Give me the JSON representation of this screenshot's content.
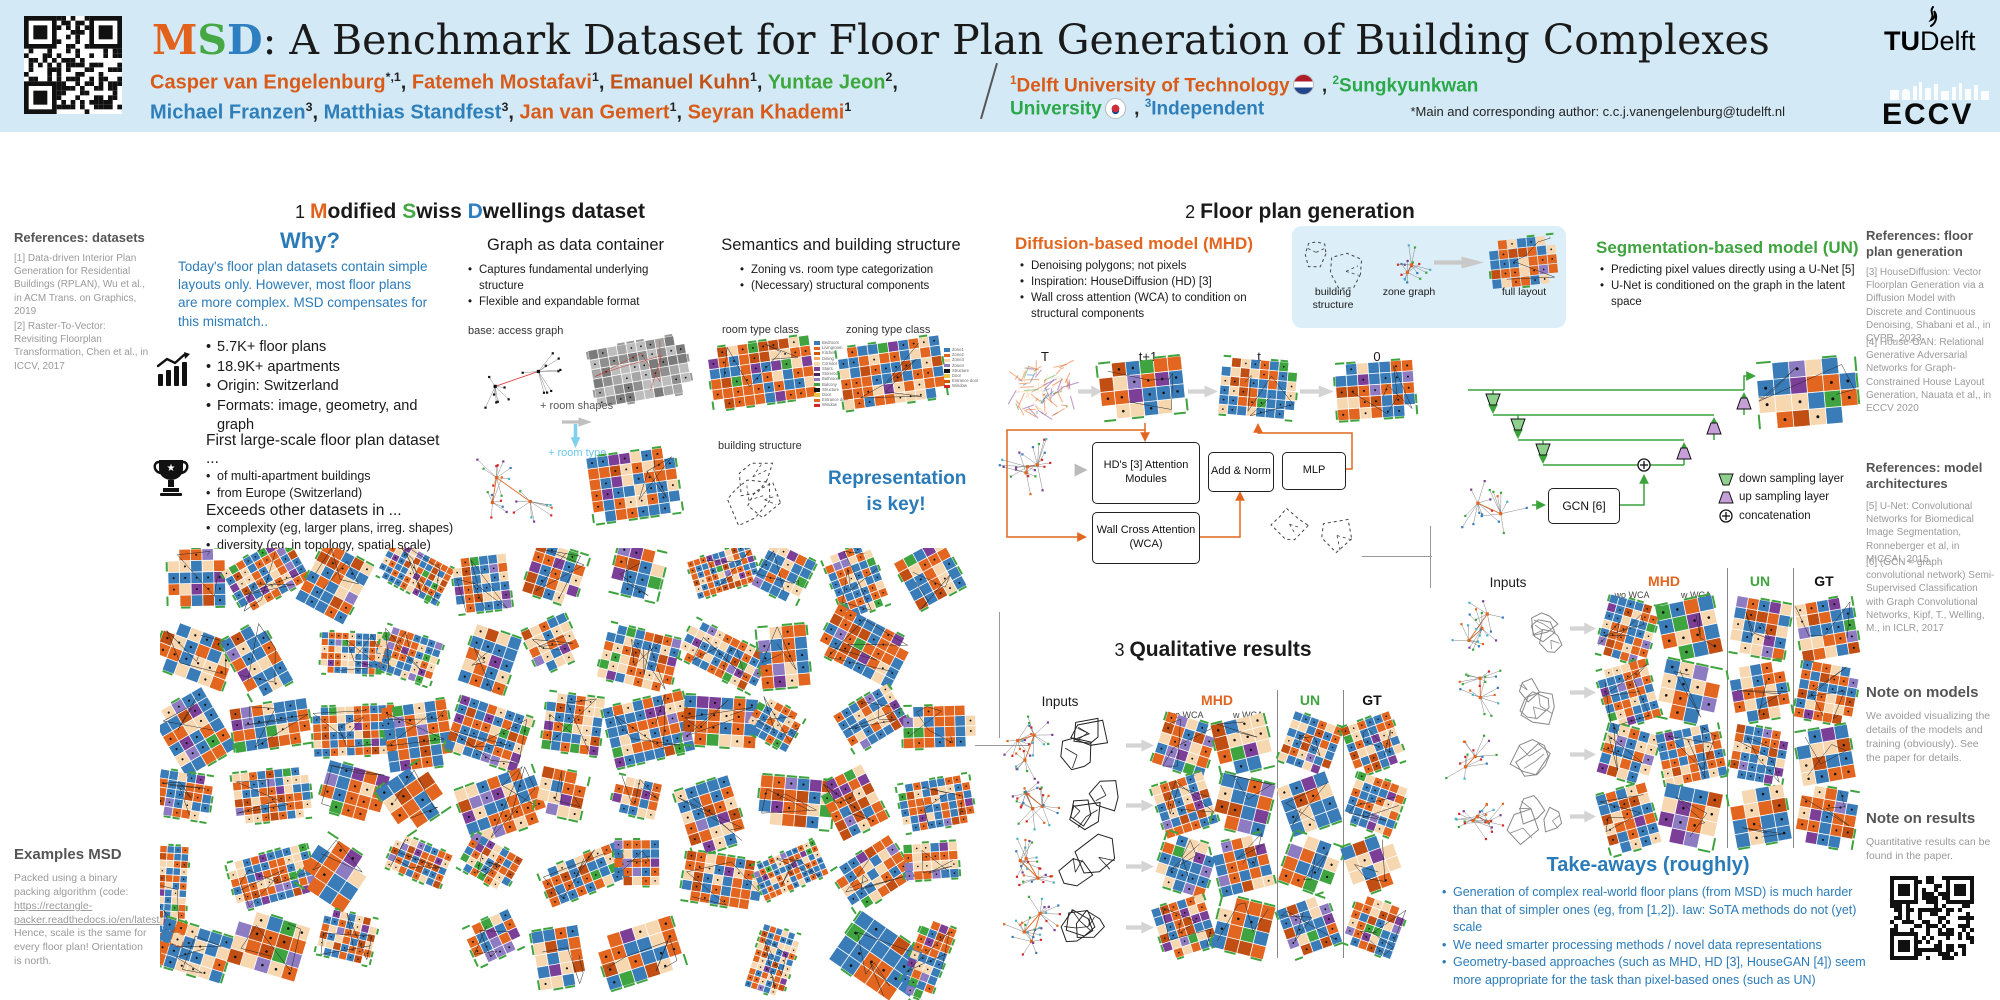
{
  "header": {
    "title": {
      "m": "M",
      "s": "S",
      "d": "D",
      "rest": ": A Benchmark Dataset for Floor Plan Generation of Building Complexes"
    },
    "authors_line1": [
      {
        "name": "Casper van Engelenburg",
        "sup": "*,1",
        "color": "#d95b1a",
        "bold": true,
        "sep": ", "
      },
      {
        "name": "Fatemeh Mostafavi",
        "sup": "1",
        "color": "#d95b1a",
        "bold": false,
        "sep": ", "
      },
      {
        "name": "Emanuel Kuhn",
        "sup": "1",
        "color": "#c45317",
        "bold": false,
        "sep": ", "
      },
      {
        "name": "Yuntae Jeon",
        "sup": "2",
        "color": "#3da win93d",
        "bold": false,
        "sep": ","
      }
    ],
    "authors_line2": [
      {
        "name": "Michael Franzen",
        "sup": "3",
        "color": "#2e7fba",
        "bold": false,
        "sep": ", "
      },
      {
        "name": "Matthias Standfest",
        "sup": "3",
        "color": "#2e7fba",
        "bold": false,
        "sep": ", "
      },
      {
        "name": "Jan van Gemert",
        "sup": "1",
        "color": "#d95b1a",
        "bold": false,
        "sep": ", "
      },
      {
        "name": "Seyran Khademi",
        "sup": "1",
        "color": "#d95b1a",
        "bold": false,
        "sep": ""
      }
    ],
    "affiliations": [
      {
        "sup": "1",
        "name": "Delft University of Technology",
        "color": "#d95b1a",
        "flag": "nl",
        "sep": " , "
      },
      {
        "sup": "2",
        "name": "Sungkyunkwan University",
        "color": "#2ba84a",
        "flag": "kr",
        "sep": " , "
      },
      {
        "sup": "3",
        "name": "Independent",
        "color": "#2e7fba",
        "flag": "",
        "sep": ""
      }
    ],
    "footnote": "*Main and corresponding author: c.c.j.vanengelenburg@tudelft.nl",
    "tudelft_tu": "TU",
    "tudelft_delft": "Delft",
    "eccv": "ECCV"
  },
  "sidebar_left": {
    "refs_title": "References: datasets",
    "refs": [
      "[1] Data-driven Interior Plan Generation for Residential Buildings (RPLAN), Wu et al., in ACM Trans. on Graphics, 2019",
      "[2] Raster-To-Vector: Revisiting Floorplan Transformation, Chen et al., in ICCV, 2017"
    ],
    "examples_title": "Examples MSD",
    "examples_text_1": "Packed using a binary packing algorithm (code: ",
    "examples_link": "https://rectangle-packer.readthedocs.io/en/latest/",
    "examples_text_2": "). Hence, scale is the same for every floor plan! Orientation is north."
  },
  "section1": {
    "heading": {
      "num": "1",
      "m": "M",
      "m_rest": "odified ",
      "s": "S",
      "s_rest": "wiss ",
      "d": "D",
      "d_rest": "wellings dataset"
    },
    "why": {
      "title": "Why?",
      "text": "Today's floor plan datasets contain simple layouts only. However, most floor plans are more complex. MSD compensates for this mismatch.."
    },
    "stats": [
      "5.7K+ floor plans",
      "18.9K+ apartments",
      "Origin: Switzerland",
      "Formats: image, geometry, and graph"
    ],
    "first": {
      "line1": "First large-scale floor plan dataset ...",
      "bullets1": [
        "of multi-apartment buildings",
        "from Europe (Switzerland)"
      ],
      "line2": "Exceeds other datasets in ...",
      "bullets2": [
        "complexity (eg, larger plans, irreg. shapes)",
        "diversity (eg, in topology, spatial scale)"
      ]
    },
    "graph_col": {
      "title": "Graph as data container",
      "bullets": [
        "Captures fundamental underlying structure",
        "Flexible and expandable format"
      ],
      "label_base": "base: access graph",
      "label_shapes": "+ room shapes",
      "label_type": "+ room type"
    },
    "semantics_col": {
      "title": "Semantics and building structure",
      "bullets": [
        "Zoning vs. room type categorization",
        "(Necessary) structural components"
      ],
      "label_room": "room type class",
      "label_zoning": "zoning type class",
      "label_structure": "building structure",
      "key_text_1": "Representation",
      "key_text_2": "is key!"
    },
    "legend_room": [
      "Bedroom",
      "Livingroom",
      "Kitchen",
      "Dining",
      "Corridor",
      "Stairs",
      "Storeroom",
      "Bathroom",
      "Balcony",
      "Structure",
      "Door",
      "Entrance door",
      "Window"
    ],
    "legend_room_colors": [
      "#3a7cb8",
      "#e2661f",
      "#d35400",
      "#f0a868",
      "#f6d7b0",
      "#7b3f98",
      "#4a235a",
      "#8e7cc3",
      "#3fa43f",
      "#111111",
      "#e8c547",
      "#e2661f",
      "#d62728"
    ],
    "legend_zone": [
      "Zone1",
      "Zone2",
      "Zone3",
      "Zone4",
      "Structure",
      "Door",
      "Entrance door",
      "Window"
    ],
    "legend_zone_colors": [
      "#3a7cb8",
      "#e2661f",
      "#f6d7b0",
      "#8e7cc3",
      "#111111",
      "#e8c547",
      "#d35400",
      "#d62728"
    ]
  },
  "section2": {
    "heading": {
      "num": "2",
      "text": "Floor plan generation"
    },
    "mhd": {
      "title": "Diffusion-based model (MHD)",
      "bullets": [
        "Denoising polygons; not pixels",
        "Inspiration: HouseDiffusion (HD) [3]",
        "Wall cross attention (WCA) to condition on structural components"
      ]
    },
    "pipeline_labels": {
      "building": "building structure",
      "zone": "zone graph",
      "full": "full layout"
    },
    "un": {
      "title": "Segmentation-based model (UN)",
      "bullets": [
        "Predicting pixel values directly using a U-Net [5]",
        "U-Net is conditioned on the graph in the latent space"
      ]
    },
    "timeline": [
      "T",
      "t+1",
      "t",
      "0"
    ],
    "boxes": {
      "attention": "HD's [3] Attention Modules",
      "addnorm": "Add & Norm",
      "mlp": "MLP",
      "wca": "Wall Cross Attention (WCA)",
      "gcn": "GCN [6]"
    },
    "unet_legend": [
      "down sampling layer",
      "up sampling layer",
      "concatenation"
    ]
  },
  "section3": {
    "heading": {
      "num": "3",
      "text": "Qualitative results"
    },
    "cols": {
      "inputs": "Inputs",
      "mhd": "MHD",
      "wo": "wo WCA",
      "w": "w WCA",
      "un": "UN",
      "gt": "GT"
    }
  },
  "takeaways": {
    "title": "Take-aways (roughly)",
    "bullets": [
      "Generation of complex real-world floor plans (from MSD) is much harder than that of simpler ones (eg, from [1,2]). Iaw: SoTA methods do not (yet) scale",
      "We need smarter processing methods / novel data representations",
      "Geometry-based approaches (such as MHD, HD [3], HouseGAN [4]) seem more appropriate for the task than pixel-based ones (such as UN)"
    ]
  },
  "sidebar_right": {
    "fp_title": "References: floor plan generation",
    "fp_refs": [
      "[3] HouseDiffusion: Vector Floorplan Generation via a Diffusion Model with Discrete and Continuous Denoising, Shabani et al., in CVPR, 2023",
      "[4] House-GAN: Relational Generative Adversarial Networks for Graph-Constrained House Layout Generation, Nauata et al,, in ECCV 2020"
    ],
    "arch_title": "References: model architectures",
    "arch_refs": [
      "[5] U-Net: Convolutional Networks for Biomedical Image Segmentation, Ronneberger et al, in MICCAI, 2015",
      "[6] (GCN = graph convolutional network) Semi-Supervised Classification with Graph Convolutional Networks, Kipf, T., Welling, M., in ICLR, 2017"
    ],
    "note_models_title": "Note on models",
    "note_models_text": "We avoided visualizing the details of the models and training (obviously). See the paper for details.",
    "note_results_title": "Note on results",
    "note_results_text": "Quantitative results can be found in the paper."
  },
  "palette": {
    "blue": "#3a7cb8",
    "orange": "#e2661f",
    "dark_orange": "#c14e13",
    "cream": "#f6d7b0",
    "green": "#3fa43f",
    "purple": "#7b3f98",
    "lavender": "#8e7cc3",
    "dark_purple": "#4a235a",
    "red": "#d62728",
    "accent_blue": "#2b7bb9",
    "header_bg": "#d3eaf6",
    "cyan": "#6cc6e8"
  }
}
